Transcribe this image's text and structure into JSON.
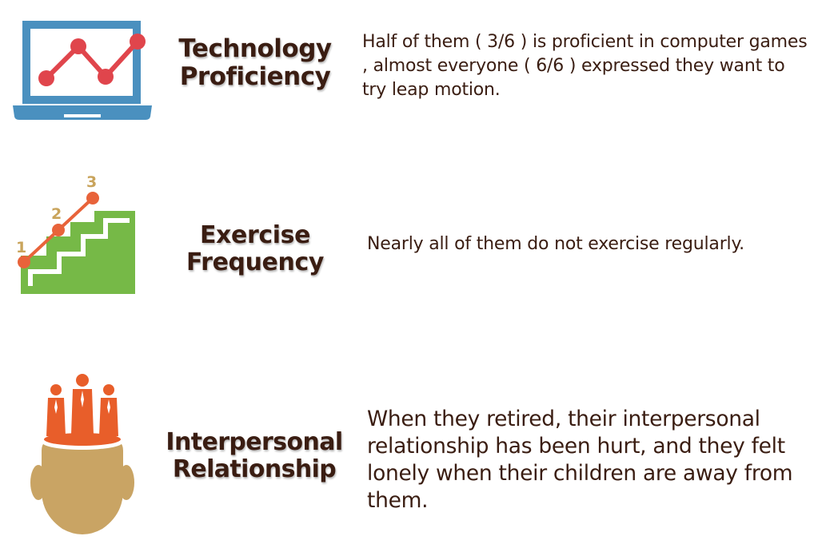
{
  "rows": [
    {
      "heading_line1": "Technology",
      "heading_line2": "Proficiency",
      "description": "Half of them ( 3/6 ) is proficient in computer games , almost everyone ( 6/6 ) expressed they want to try leap motion.",
      "icon": "laptop-chart-icon"
    },
    {
      "heading_line1": "Exercise",
      "heading_line2": "Frequency",
      "description": "Nearly all of them do not exercise regularly.",
      "icon": "stairs-steps-icon",
      "step_labels": [
        "1",
        "2",
        "3"
      ]
    },
    {
      "heading_line1": "Interpersonal",
      "heading_line2": "Relationship",
      "description": "When they retired, their interpersonal relationship has been hurt, and they felt lonely when their children are away from them.",
      "icon": "head-people-icon"
    }
  ],
  "colors": {
    "text": "#3a1d12",
    "laptop_blue": "#4a90bf",
    "chart_red": "#e0454c",
    "stairs_green": "#76b947",
    "step_orange": "#e8633a",
    "step_label_tan": "#c9a45c",
    "people_orange": "#e85e2a",
    "head_tan": "#c9a464"
  }
}
